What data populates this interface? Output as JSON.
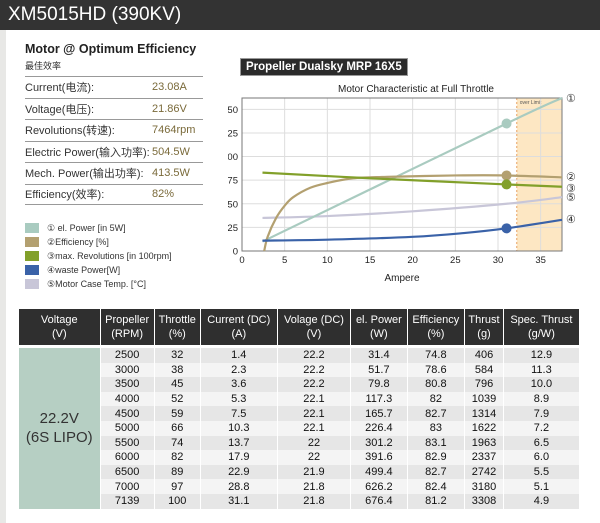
{
  "title": "XM5015HD (390KV)",
  "optimum": {
    "heading": "Motor @ Optimum Efficiency",
    "heading_cn": "最佳效率",
    "rows": [
      {
        "label": "Current(电流):",
        "value": "23.08A"
      },
      {
        "label": "Voltage(电压):",
        "value": "21.86V"
      },
      {
        "label": "Revolutions(转速):",
        "value": "7464rpm"
      },
      {
        "label": "Electric Power(输入功率):",
        "value": "504.5W"
      },
      {
        "label": "Mech. Power(输出功率):",
        "value": "413.5W"
      },
      {
        "label": "Efficiency(效率):",
        "value": "82%"
      }
    ]
  },
  "propeller_label": "Propeller Dualsky MRP 16X5",
  "chart_data": {
    "type": "line",
    "title": "Motor Characteristic at Full Throttle",
    "xlabel": "Ampere",
    "xlim": [
      0,
      37.5
    ],
    "ylim": [
      0,
      162
    ],
    "xticks": [
      0,
      5,
      10,
      15,
      20,
      25,
      30,
      35
    ],
    "yticks": [
      0,
      25,
      50,
      75,
      100,
      125,
      150
    ],
    "over_limit": {
      "label": "over Limit",
      "from": 32.2,
      "to": 37.5
    },
    "series": [
      {
        "name": "① el. Power [in 5W]",
        "marker": "①",
        "color": "#a9cbc0",
        "x": [
          2.4,
          31,
          37.5
        ],
        "y": [
          10,
          135,
          162
        ],
        "dot": [
          31,
          135
        ]
      },
      {
        "name": "②Efficiency [%]",
        "marker": "②",
        "color": "#b3a070",
        "x": [
          2.6,
          3,
          4,
          5,
          6,
          8,
          10,
          13,
          17,
          25,
          31,
          37.5
        ],
        "y": [
          0,
          15,
          35,
          48,
          57,
          67,
          72,
          77,
          78.5,
          80,
          80,
          78
        ],
        "dot": [
          31,
          80
        ]
      },
      {
        "name": "③max. Revolutions [in 100rpm]",
        "marker": "③",
        "color": "#82a02a",
        "x": [
          2.4,
          15,
          31,
          37.5
        ],
        "y": [
          83,
          77,
          70.5,
          68
        ],
        "dot": [
          31,
          70.5
        ]
      },
      {
        "name": "④waste Power[W]",
        "marker": "④",
        "color": "#3a62a8",
        "x": [
          2.4,
          10,
          20,
          26,
          31,
          37.5
        ],
        "y": [
          11,
          12,
          15,
          19,
          24,
          33
        ],
        "dot": [
          31,
          24
        ]
      },
      {
        "name": "⑤Motor Case Temp. [°C]",
        "marker": "⑤",
        "color": "#c8c6d8",
        "x": [
          2.4,
          10,
          20,
          31,
          37.5
        ],
        "y": [
          35,
          37,
          42,
          50,
          57
        ],
        "dot": null
      }
    ]
  },
  "table": {
    "headers": [
      [
        "Voltage",
        "(V)"
      ],
      [
        "Propeller",
        "(RPM)"
      ],
      [
        "Throttle",
        "(%)"
      ],
      [
        "Current (DC)",
        "(A)"
      ],
      [
        "Volage (DC)",
        "(V)"
      ],
      [
        "el. Power",
        "(W)"
      ],
      [
        "Efficiency",
        "(%)"
      ],
      [
        "Thrust",
        "(g)"
      ],
      [
        "Spec. Thrust",
        "(g/W)"
      ]
    ],
    "voltage": [
      "22.2V",
      "(6S LIPO)"
    ],
    "rows": [
      [
        "2500",
        "32",
        "1.4",
        "22.2",
        "31.4",
        "74.8",
        "406",
        "12.9"
      ],
      [
        "3000",
        "38",
        "2.3",
        "22.2",
        "51.7",
        "78.6",
        "584",
        "11.3"
      ],
      [
        "3500",
        "45",
        "3.6",
        "22.2",
        "79.8",
        "80.8",
        "796",
        "10.0"
      ],
      [
        "4000",
        "52",
        "5.3",
        "22.1",
        "117.3",
        "82",
        "1039",
        "8.9"
      ],
      [
        "4500",
        "59",
        "7.5",
        "22.1",
        "165.7",
        "82.7",
        "1314",
        "7.9"
      ],
      [
        "5000",
        "66",
        "10.3",
        "22.1",
        "226.4",
        "83",
        "1622",
        "7.2"
      ],
      [
        "5500",
        "74",
        "13.7",
        "22",
        "301.2",
        "83.1",
        "1963",
        "6.5"
      ],
      [
        "6000",
        "82",
        "17.9",
        "22",
        "391.6",
        "82.9",
        "2337",
        "6.0"
      ],
      [
        "6500",
        "89",
        "22.9",
        "21.9",
        "499.4",
        "82.7",
        "2742",
        "5.5"
      ],
      [
        "7000",
        "97",
        "28.8",
        "21.8",
        "626.2",
        "82.4",
        "3180",
        "5.1"
      ],
      [
        "7139",
        "100",
        "31.1",
        "21.8",
        "676.4",
        "81.2",
        "3308",
        "4.9"
      ]
    ]
  }
}
